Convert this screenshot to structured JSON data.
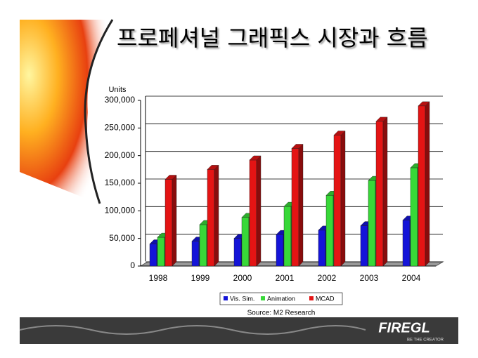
{
  "title": "프로페셔널 그래픽스 시장과 흐름",
  "logo": "FIREGL",
  "logo_tagline": "BE THE CREATOR",
  "chart_data": {
    "type": "bar3d",
    "y_axis_label": "Units",
    "source": "Source: M2 Research",
    "categories": [
      "1998",
      "1999",
      "2000",
      "2001",
      "2002",
      "2003",
      "2004"
    ],
    "series": [
      {
        "name": "Vis. Sim.",
        "color": "#1414d8",
        "values": [
          40000,
          45000,
          50000,
          57000,
          65000,
          73000,
          83000
        ]
      },
      {
        "name": "Animation",
        "color": "#38d838",
        "values": [
          52000,
          75000,
          88000,
          108000,
          128000,
          155000,
          178000
        ]
      },
      {
        "name": "MCAD",
        "color": "#e41414",
        "values": [
          157000,
          175000,
          192000,
          213000,
          237000,
          262000,
          290000
        ]
      }
    ],
    "ylim": [
      0,
      300000
    ],
    "yticks": [
      0,
      {
        "value": 50000,
        "label": "50,000"
      },
      {
        "value": 100000,
        "label": "100,000"
      },
      {
        "value": 150000,
        "label": "150,000"
      },
      {
        "value": 200000,
        "label": "200,000"
      },
      {
        "value": 250000,
        "label": "250,000"
      },
      {
        "value": 300000,
        "label": "300,000"
      }
    ],
    "grid": true
  }
}
